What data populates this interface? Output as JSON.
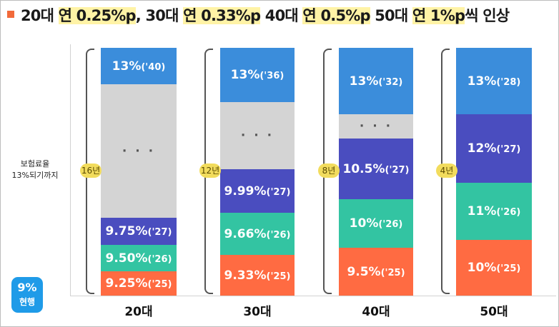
{
  "title": {
    "parts": [
      {
        "text": "20대 ",
        "hl": false
      },
      {
        "text": "연 0.25%p",
        "hl": true
      },
      {
        "text": ", 30대 ",
        "hl": false
      },
      {
        "text": "연 0.33%p",
        "hl": true
      },
      {
        "text": " 40대 ",
        "hl": false
      },
      {
        "text": "연 0.5%p",
        "hl": true
      },
      {
        "text": " 50대 ",
        "hl": false
      },
      {
        "text": "연 1%p",
        "hl": true
      },
      {
        "text": "씩 인상",
        "hl": false
      }
    ]
  },
  "y_label": {
    "line1": "보험료율",
    "line2": "13%되기까지"
  },
  "current": {
    "value": "9%",
    "label": "현행"
  },
  "colors": {
    "y25": "#ff6b42",
    "y26": "#33c4a2",
    "y27": "#4a4dbf",
    "y28": "#3b8ddb",
    "gap": "#d4d4d4",
    "target": "#3b8ddb",
    "pill": "#f2dc5d"
  },
  "chart_data": {
    "type": "bar",
    "xlabel": "",
    "ylabel": "보험료율 13%되기까지",
    "categories": [
      "20대",
      "30대",
      "40대",
      "50대"
    ],
    "columns": [
      {
        "category": "20대",
        "duration": "16년",
        "annual_increase_pct_points": 0.25,
        "segments": [
          {
            "value": 9.25,
            "text": "9.25%",
            "year": "('25)",
            "color_key": "y25"
          },
          {
            "value": 9.5,
            "text": "9.50%",
            "year": "('26)",
            "color_key": "y26"
          },
          {
            "value": 9.75,
            "text": "9.75%",
            "year": "('27)",
            "color_key": "y27"
          },
          {
            "value": null,
            "text": "· · ·",
            "year": "",
            "color_key": "gap"
          },
          {
            "value": 13,
            "text": "13%",
            "year": "('40)",
            "color_key": "target"
          }
        ]
      },
      {
        "category": "30대",
        "duration": "12년",
        "annual_increase_pct_points": 0.33,
        "segments": [
          {
            "value": 9.33,
            "text": "9.33%",
            "year": "('25)",
            "color_key": "y25"
          },
          {
            "value": 9.66,
            "text": "9.66%",
            "year": "('26)",
            "color_key": "y26"
          },
          {
            "value": 9.99,
            "text": "9.99%",
            "year": "('27)",
            "color_key": "y27"
          },
          {
            "value": null,
            "text": "· · ·",
            "year": "",
            "color_key": "gap"
          },
          {
            "value": 13,
            "text": "13%",
            "year": "('36)",
            "color_key": "target"
          }
        ]
      },
      {
        "category": "40대",
        "duration": "8년",
        "annual_increase_pct_points": 0.5,
        "segments": [
          {
            "value": 9.5,
            "text": "9.5%",
            "year": "('25)",
            "color_key": "y25"
          },
          {
            "value": 10,
            "text": "10%",
            "year": "('26)",
            "color_key": "y26"
          },
          {
            "value": 10.5,
            "text": "10.5%",
            "year": "('27)",
            "color_key": "y27"
          },
          {
            "value": null,
            "text": "· · ·",
            "year": "",
            "color_key": "gap"
          },
          {
            "value": 13,
            "text": "13%",
            "year": "('32)",
            "color_key": "target"
          }
        ]
      },
      {
        "category": "50대",
        "duration": "4년",
        "annual_increase_pct_points": 1,
        "segments": [
          {
            "value": 10,
            "text": "10%",
            "year": "('25)",
            "color_key": "y25"
          },
          {
            "value": 11,
            "text": "11%",
            "year": "('26)",
            "color_key": "y26"
          },
          {
            "value": 12,
            "text": "12%",
            "year": "('27)",
            "color_key": "y27"
          },
          {
            "value": 13,
            "text": "13%",
            "year": "('28)",
            "color_key": "target"
          }
        ]
      }
    ]
  }
}
